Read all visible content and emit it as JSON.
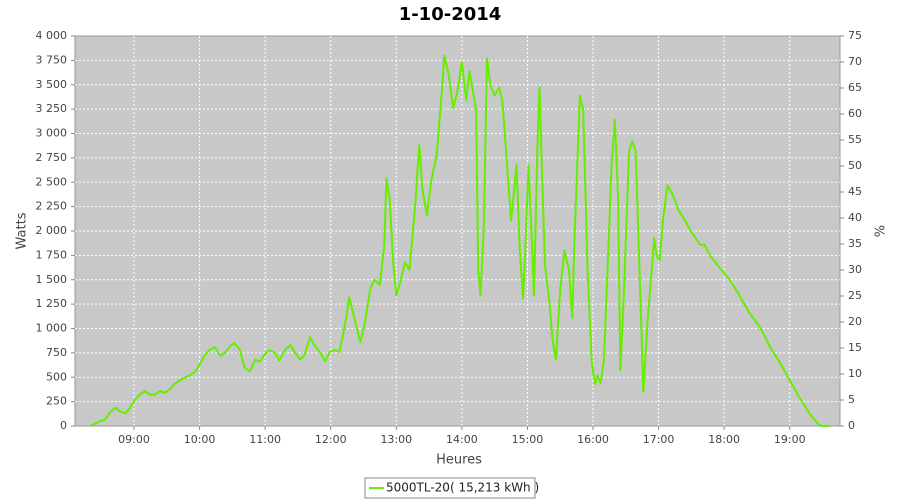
{
  "chart_data": {
    "type": "line",
    "title": "1-10-2014",
    "x_label": "Heures",
    "y_label": "Watts",
    "y2_label": "%",
    "x": [
      "08:20",
      "08:29",
      "08:33",
      "08:38",
      "08:43",
      "08:47",
      "08:52",
      "08:56",
      "09:01",
      "09:05",
      "09:10",
      "09:15",
      "09:19",
      "09:24",
      "09:28",
      "09:33",
      "09:37",
      "09:42",
      "09:47",
      "09:51",
      "09:56",
      "10:00",
      "10:05",
      "10:09",
      "10:14",
      "10:19",
      "10:23",
      "10:28",
      "10:32",
      "10:37",
      "10:41",
      "10:46",
      "10:51",
      "10:55",
      "11:00",
      "11:04",
      "11:09",
      "11:13",
      "11:18",
      "11:23",
      "11:27",
      "11:32",
      "11:36",
      "11:41",
      "11:45",
      "11:50",
      "11:55",
      "11:59",
      "12:04",
      "12:08",
      "12:13",
      "12:17",
      "12:22",
      "12:27",
      "12:31",
      "12:36",
      "12:40",
      "12:45",
      "12:49",
      "12:51",
      "12:54",
      "12:57",
      "13:00",
      "13:03",
      "13:08",
      "13:12",
      "13:17",
      "13:21",
      "13:24",
      "13:28",
      "13:32",
      "13:37",
      "13:41",
      "13:44",
      "13:48",
      "13:52",
      "13:56",
      "14:00",
      "14:04",
      "14:07",
      "14:13",
      "14:15",
      "14:17",
      "14:20",
      "14:23",
      "14:26",
      "14:30",
      "14:34",
      "14:37",
      "14:41",
      "14:45",
      "14:47",
      "14:50",
      "14:53",
      "14:56",
      "14:58",
      "15:01",
      "15:04",
      "15:06",
      "15:09",
      "15:11",
      "15:13",
      "15:16",
      "15:20",
      "15:23",
      "15:26",
      "15:30",
      "15:34",
      "15:38",
      "15:41",
      "15:43",
      "15:48",
      "15:51",
      "15:55",
      "15:59",
      "16:02",
      "16:04",
      "16:07",
      "16:10",
      "16:14",
      "16:17",
      "16:20",
      "16:23",
      "16:25",
      "16:28",
      "16:33",
      "16:36",
      "16:39",
      "16:44",
      "16:46",
      "16:50",
      "16:53",
      "16:56",
      "16:58",
      "17:01",
      "17:04",
      "17:08",
      "17:13",
      "17:18",
      "17:24",
      "17:30",
      "17:38",
      "17:42",
      "17:47",
      "17:56",
      "18:05",
      "18:14",
      "18:23",
      "18:33",
      "18:42",
      "18:51",
      "19:00",
      "19:09",
      "19:18",
      "19:26",
      "19:29",
      "19:37"
    ],
    "series": [
      {
        "name": "5000TL-20( 15,213 kWh )",
        "color": "#66ee00",
        "values": [
          0,
          50,
          60,
          140,
          190,
          150,
          130,
          180,
          270,
          320,
          360,
          320,
          320,
          360,
          340,
          380,
          430,
          470,
          500,
          520,
          560,
          630,
          730,
          780,
          810,
          720,
          750,
          820,
          850,
          780,
          600,
          560,
          680,
          660,
          740,
          780,
          750,
          670,
          780,
          830,
          760,
          680,
          730,
          910,
          830,
          760,
          660,
          760,
          780,
          760,
          1040,
          1320,
          1090,
          860,
          1040,
          1400,
          1500,
          1450,
          1860,
          2540,
          2320,
          1700,
          1340,
          1450,
          1680,
          1600,
          2220,
          2880,
          2420,
          2160,
          2520,
          2780,
          3340,
          3800,
          3600,
          3260,
          3440,
          3730,
          3340,
          3640,
          3240,
          1600,
          1340,
          2010,
          3770,
          3500,
          3390,
          3470,
          3340,
          2730,
          2110,
          2320,
          2680,
          1800,
          1310,
          1800,
          2680,
          1910,
          1340,
          2820,
          3470,
          2730,
          1650,
          1290,
          880,
          680,
          1400,
          1800,
          1600,
          1110,
          1910,
          3390,
          3240,
          1600,
          630,
          430,
          520,
          440,
          680,
          1800,
          2680,
          3140,
          2320,
          570,
          1290,
          2820,
          2920,
          2820,
          1090,
          350,
          1090,
          1500,
          1930,
          1750,
          1700,
          2110,
          2470,
          2370,
          2220,
          2110,
          1990,
          1860,
          1860,
          1750,
          1620,
          1500,
          1340,
          1160,
          1010,
          810,
          650,
          470,
          290,
          130,
          20,
          0,
          0
        ]
      }
    ],
    "xlim": [
      "08:06",
      "19:46"
    ],
    "xticks": [
      "09:00",
      "10:00",
      "11:00",
      "12:00",
      "13:00",
      "14:00",
      "15:00",
      "16:00",
      "17:00",
      "18:00",
      "19:00"
    ],
    "ylim": [
      0,
      4000
    ],
    "yticks": [
      0,
      250,
      500,
      750,
      {
        "value": 1000,
        "label": "1 000"
      },
      {
        "value": 1250,
        "label": "1 250"
      },
      {
        "value": 1500,
        "label": "1 500"
      },
      {
        "value": 1750,
        "label": "1 750"
      },
      {
        "value": 2000,
        "label": "2 000"
      },
      {
        "value": 2250,
        "label": "2 250"
      },
      {
        "value": 2500,
        "label": "2 500"
      },
      {
        "value": 2750,
        "label": "2 750"
      },
      {
        "value": 3000,
        "label": "3 000"
      },
      {
        "value": 3250,
        "label": "3 250"
      },
      {
        "value": 3500,
        "label": "3 500"
      },
      {
        "value": 3750,
        "label": "3 750"
      },
      {
        "value": 4000,
        "label": "4 000"
      }
    ],
    "y2lim": [
      0,
      75
    ],
    "y2ticks": [
      0,
      5,
      10,
      15,
      20,
      25,
      30,
      35,
      40,
      45,
      50,
      55,
      60,
      65,
      70,
      75
    ],
    "grid": true
  }
}
